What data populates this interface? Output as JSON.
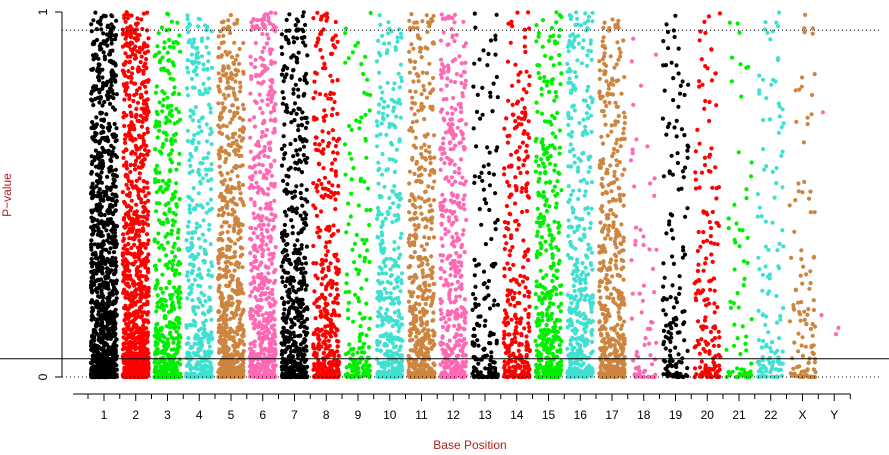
{
  "chart_data": {
    "type": "scatter",
    "title": "",
    "xlabel": "Base Position",
    "ylabel": "P−value",
    "xlabel_color": "#b22222",
    "ylabel_color": "#b22222",
    "ylim": [
      0,
      1
    ],
    "y_ticks": [
      "0",
      "1"
    ],
    "grid": false,
    "reference_lines": [
      {
        "type": "dotted",
        "y": 0.95
      },
      {
        "type": "dotted",
        "y": 0.0
      },
      {
        "type": "solid",
        "y": 0.05
      }
    ],
    "chromosomes": [
      {
        "label": "1",
        "color": "#000000",
        "n": 1100,
        "skew": 2.2
      },
      {
        "label": "2",
        "color": "#ff0000",
        "n": 1000,
        "skew": 2.2
      },
      {
        "label": "3",
        "color": "#00ee00",
        "n": 500,
        "skew": 2.4
      },
      {
        "label": "4",
        "color": "#40e0d0",
        "n": 420,
        "skew": 2.1
      },
      {
        "label": "5",
        "color": "#cd853f",
        "n": 650,
        "skew": 2.0
      },
      {
        "label": "6",
        "color": "#ff69b4",
        "n": 600,
        "skew": 2.0
      },
      {
        "label": "7",
        "color": "#000000",
        "n": 550,
        "skew": 2.3
      },
      {
        "label": "8",
        "color": "#ff0000",
        "n": 420,
        "skew": 2.3
      },
      {
        "label": "9",
        "color": "#00ee00",
        "n": 160,
        "skew": 2.4
      },
      {
        "label": "10",
        "color": "#40e0d0",
        "n": 380,
        "skew": 2.1
      },
      {
        "label": "11",
        "color": "#cd853f",
        "n": 500,
        "skew": 2.2
      },
      {
        "label": "12",
        "color": "#ff69b4",
        "n": 450,
        "skew": 2.2
      },
      {
        "label": "13",
        "color": "#000000",
        "n": 180,
        "skew": 2.6
      },
      {
        "label": "14",
        "color": "#ff0000",
        "n": 330,
        "skew": 2.3
      },
      {
        "label": "15",
        "color": "#00ee00",
        "n": 420,
        "skew": 2.3
      },
      {
        "label": "16",
        "color": "#40e0d0",
        "n": 420,
        "skew": 2.1
      },
      {
        "label": "17",
        "color": "#cd853f",
        "n": 500,
        "skew": 2.2
      },
      {
        "label": "18",
        "color": "#ff69b4",
        "n": 70,
        "skew": 2.8
      },
      {
        "label": "19",
        "color": "#000000",
        "n": 150,
        "skew": 2.4
      },
      {
        "label": "20",
        "color": "#ff0000",
        "n": 170,
        "skew": 2.4
      },
      {
        "label": "21",
        "color": "#00ee00",
        "n": 70,
        "skew": 3.0
      },
      {
        "label": "22",
        "color": "#40e0d0",
        "n": 130,
        "skew": 2.5
      },
      {
        "label": "X",
        "color": "#cd853f",
        "n": 110,
        "skew": 2.5
      },
      {
        "label": "Y",
        "color": "#ff69b4",
        "n": 4,
        "skew": 1.0
      }
    ]
  }
}
